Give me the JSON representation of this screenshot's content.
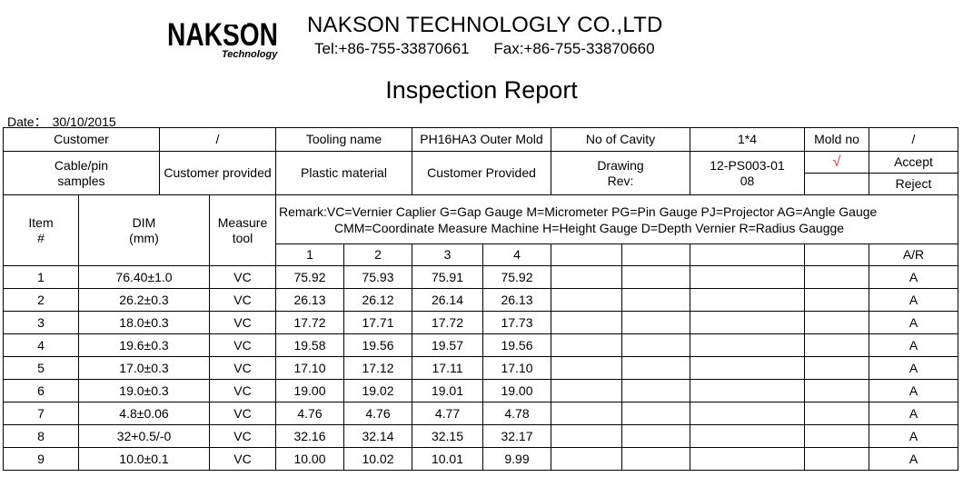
{
  "header": {
    "logo_text": "NAKSON",
    "logo_sub": "Technology",
    "company_name": "NAKSON TECHNOLOGLY CO.,LTD",
    "tel": "Tel:+86-755-33870661",
    "fax": "Fax:+86-755-33870660",
    "title": "Inspection Report",
    "date_label": "Date：",
    "date_value": "30/10/2015"
  },
  "info": {
    "customer_label": "Customer",
    "customer_value": "/",
    "tooling_label": "Tooling name",
    "tooling_value": "PH16HA3 Outer Mold",
    "cavity_label": "No of Cavity",
    "cavity_value": "1*4",
    "mold_no_label": "Mold no",
    "mold_no_value": "/",
    "cable_label_1": "Cable/pin",
    "cable_label_2": "samples",
    "cable_value": "Customer provided",
    "plastic_label": "Plastic material",
    "plastic_value": "Customer Provided",
    "drawing_label_1": "Drawing",
    "drawing_label_2": "Rev:",
    "drawing_value_1": "12-PS003-01",
    "drawing_value_2": "08",
    "check_mark": "√",
    "accept_label": "Accept",
    "reject_label": "Reject"
  },
  "measure_header": {
    "item_1": "Item",
    "item_2": "#",
    "dim_1": "DIM",
    "dim_2": "(mm)",
    "tool_1": "Measure",
    "tool_2": "tool",
    "remark_1": "Remark:VC=Vernier Caplier G=Gap Gauge  M=Micrometer  PG=Pin Gauge PJ=Projector AG=Angle Gauge",
    "remark_2": "CMM=Coordinate Measure Machine  H=Height Gauge   D=Depth Vernier  R=Radius Gaugge",
    "cols": [
      "1",
      "2",
      "3",
      "4"
    ],
    "ar": "A/R"
  },
  "rows": [
    {
      "item": "1",
      "dim": "76.40±1.0",
      "tool": "VC",
      "v": [
        "75.92",
        "75.93",
        "75.91",
        "75.92"
      ],
      "ar": "A"
    },
    {
      "item": "2",
      "dim": "26.2±0.3",
      "tool": "VC",
      "v": [
        "26.13",
        "26.12",
        "26.14",
        "26.13"
      ],
      "ar": "A"
    },
    {
      "item": "3",
      "dim": "18.0±0.3",
      "tool": "VC",
      "v": [
        "17.72",
        "17.71",
        "17.72",
        "17.73"
      ],
      "ar": "A"
    },
    {
      "item": "4",
      "dim": "19.6±0.3",
      "tool": "VC",
      "v": [
        "19.58",
        "19.56",
        "19.57",
        "19.56"
      ],
      "ar": "A"
    },
    {
      "item": "5",
      "dim": "17.0±0.3",
      "tool": "VC",
      "v": [
        "17.10",
        "17.12",
        "17.11",
        "17.10"
      ],
      "ar": "A"
    },
    {
      "item": "6",
      "dim": "19.0±0.3",
      "tool": "VC",
      "v": [
        "19.00",
        "19.02",
        "19.01",
        "19.00"
      ],
      "ar": "A"
    },
    {
      "item": "7",
      "dim": "4.8±0.06",
      "tool": "VC",
      "v": [
        "4.76",
        "4.76",
        "4.77",
        "4.78"
      ],
      "ar": "A"
    },
    {
      "item": "8",
      "dim": "32+0.5/-0",
      "tool": "VC",
      "v": [
        "32.16",
        "32.14",
        "32.15",
        "32.17"
      ],
      "ar": "A"
    },
    {
      "item": "9",
      "dim": "10.0±0.1",
      "tool": "VC",
      "v": [
        "10.00",
        "10.02",
        "10.01",
        "9.99"
      ],
      "ar": "A"
    }
  ]
}
